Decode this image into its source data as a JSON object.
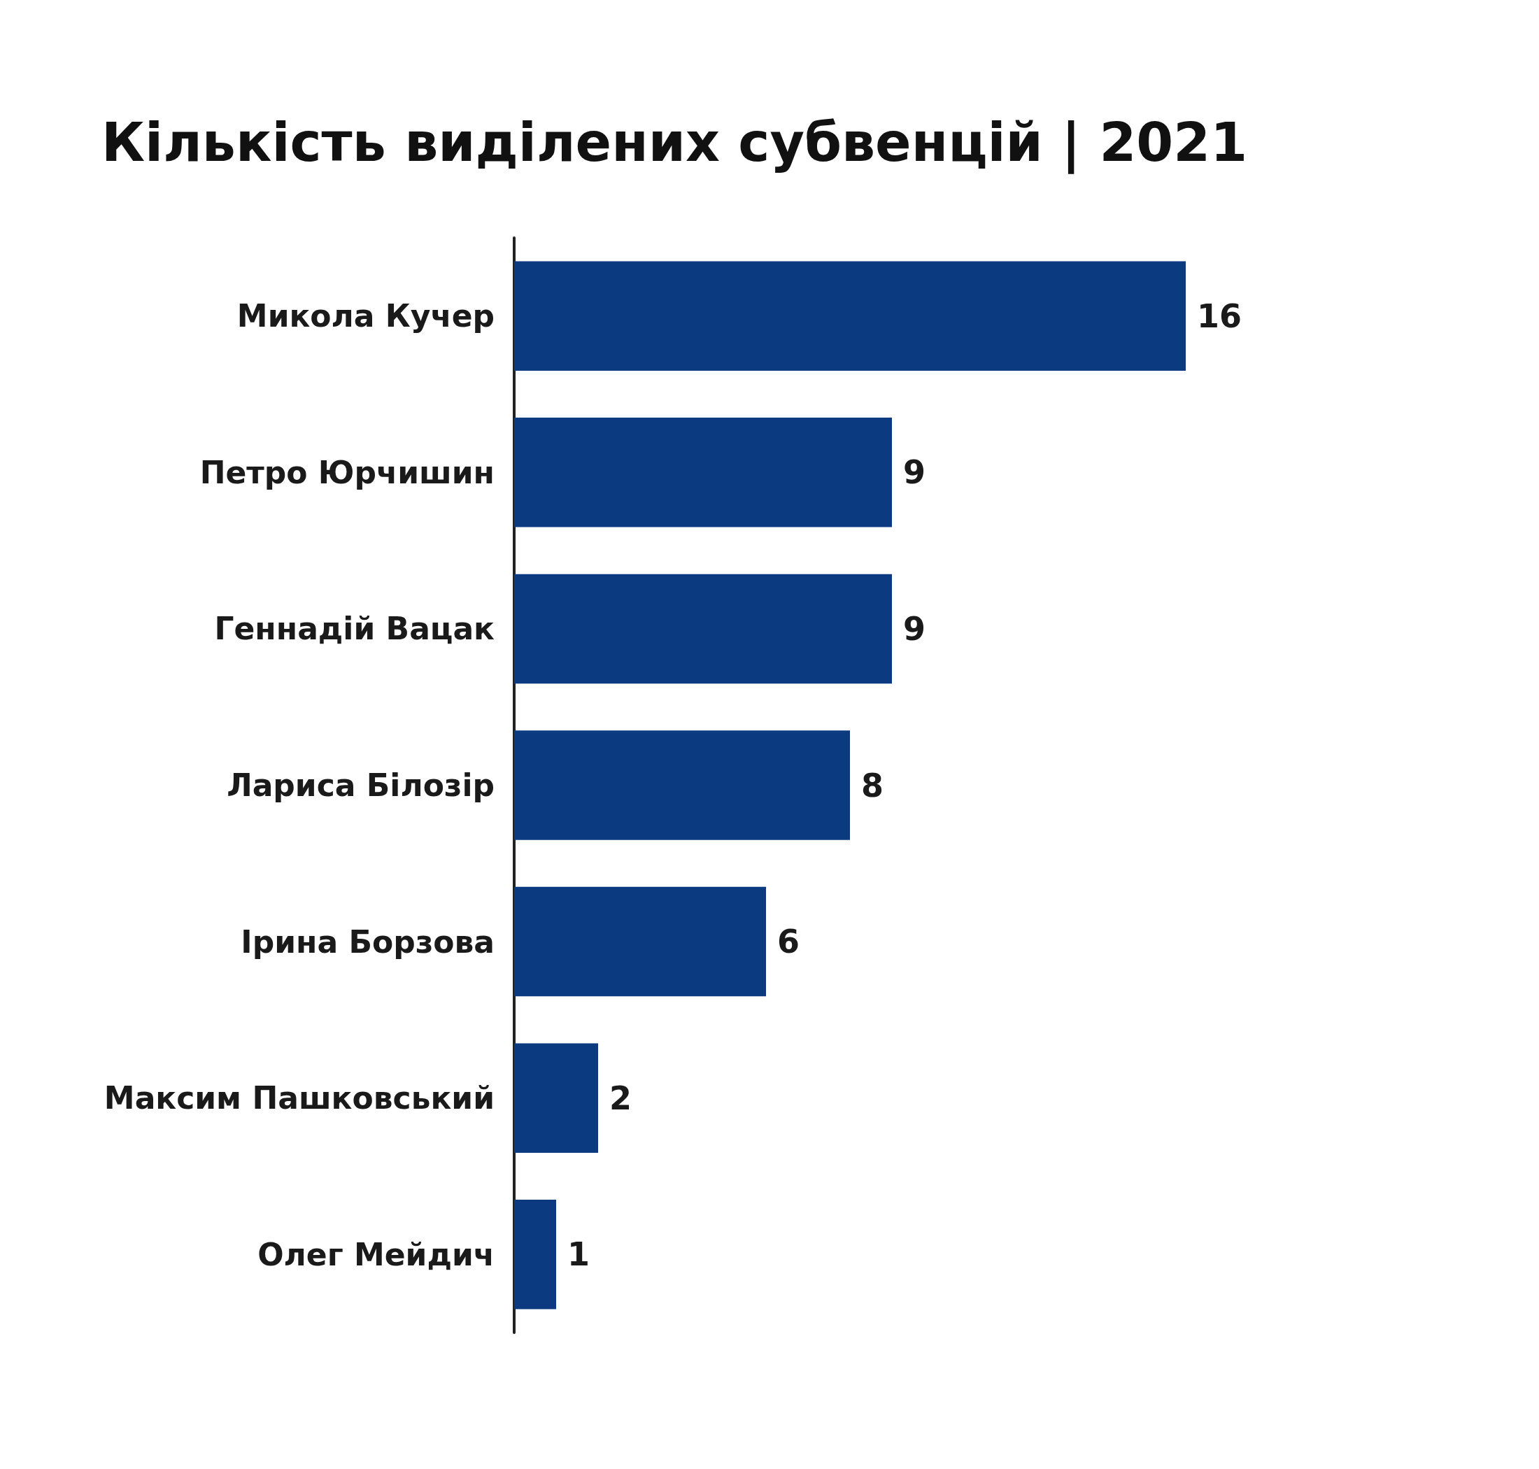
{
  "chart_data": {
    "type": "bar",
    "orientation": "horizontal",
    "title": "Кількість виділених субвенцій | 2021",
    "categories": [
      "Микола Кучер",
      "Петро Юрчишин",
      "Геннадій Вацак",
      "Лариса Білозір",
      "Ірина Борзова",
      "Максим Пашковський",
      "Олег Мейдич"
    ],
    "values": [
      16,
      9,
      9,
      8,
      6,
      2,
      1
    ],
    "color": "#0b3a80",
    "data_labels": true
  }
}
